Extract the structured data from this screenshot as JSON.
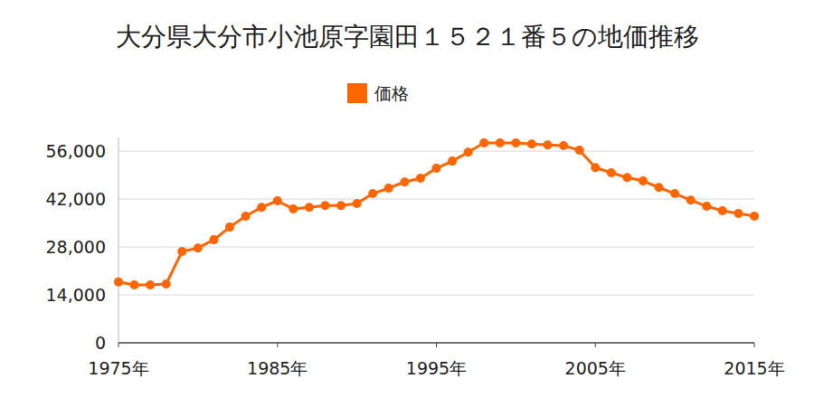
{
  "chart_data": {
    "type": "line",
    "title": "大分県大分市小池原字園田１５２１番５の地価推移",
    "x": [
      1975,
      1976,
      1977,
      1978,
      1979,
      1980,
      1981,
      1982,
      1983,
      1984,
      1985,
      1986,
      1987,
      1988,
      1989,
      1990,
      1991,
      1992,
      1993,
      1994,
      1995,
      1996,
      1997,
      1998,
      1999,
      2000,
      2001,
      2002,
      2003,
      2004,
      2005,
      2006,
      2007,
      2008,
      2009,
      2010,
      2011,
      2012,
      2013,
      2014,
      2015
    ],
    "series": [
      {
        "name": "価格",
        "color": "#ff6600",
        "marker": "circle",
        "values": [
          17800,
          16900,
          16900,
          17200,
          26700,
          27700,
          30100,
          33800,
          37000,
          39600,
          41500,
          39100,
          39600,
          40100,
          40100,
          40700,
          43600,
          45200,
          47000,
          48100,
          51000,
          53100,
          55700,
          58400,
          58400,
          58400,
          58100,
          57800,
          57600,
          56300,
          51200,
          49700,
          48300,
          47300,
          45400,
          43600,
          41700,
          39900,
          38600,
          37800,
          37000
        ]
      }
    ],
    "xlim": [
      1975,
      2015
    ],
    "xticks": [
      {
        "value": 1975,
        "label": "1975年"
      },
      {
        "value": 1985,
        "label": "1985年"
      },
      {
        "value": 1995,
        "label": "1995年"
      },
      {
        "value": 2005,
        "label": "2005年"
      },
      {
        "value": 2015,
        "label": "2015年"
      }
    ],
    "ylim": [
      0,
      60000
    ],
    "yticks": [
      0,
      {
        "value": 14000,
        "label": "14,000"
      },
      {
        "value": 28000,
        "label": "28,000"
      },
      {
        "value": 42000,
        "label": "42,000"
      },
      {
        "value": 56000,
        "label": "56,000"
      }
    ],
    "grid": true,
    "legend": "top"
  }
}
